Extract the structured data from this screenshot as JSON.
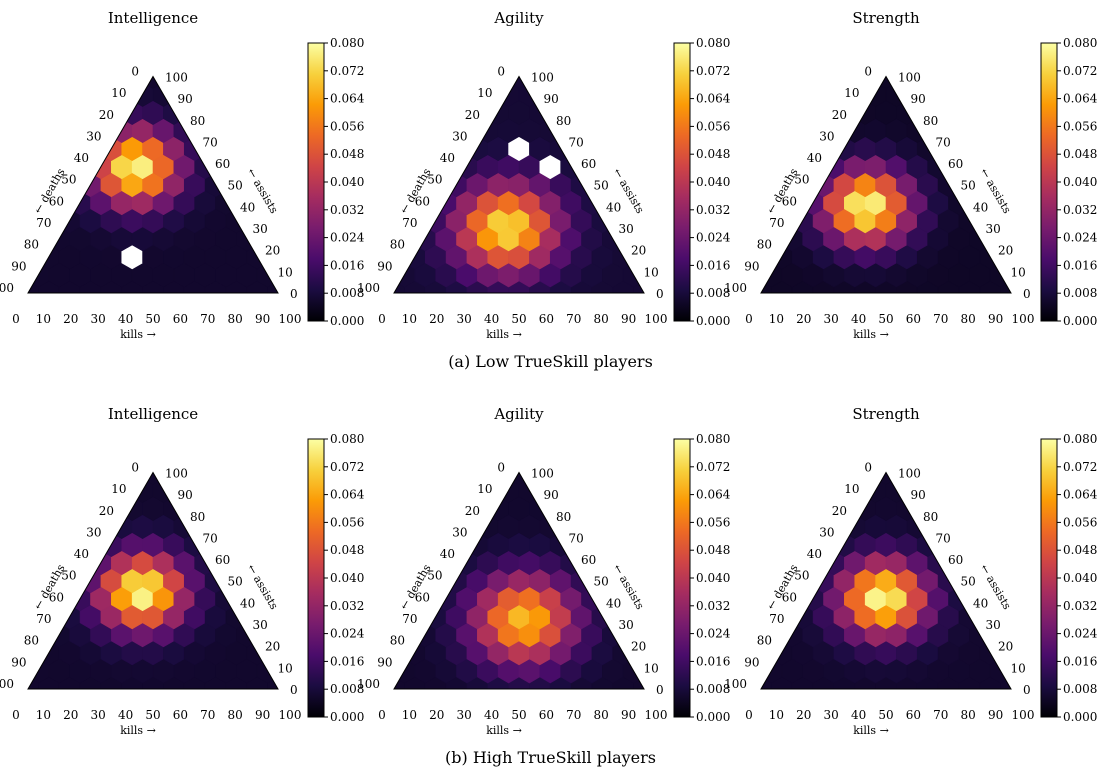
{
  "figure": {
    "captions": [
      "(a) Low TrueSkill players",
      "(b) High TrueSkill players"
    ]
  },
  "colormap": {
    "name": "inferno",
    "stops": [
      "#000004",
      "#1b0c41",
      "#4a0c6b",
      "#781c6d",
      "#a52c60",
      "#cf4446",
      "#ed6925",
      "#fb9b06",
      "#f7d13d",
      "#fcffa4"
    ]
  },
  "axis_labels": {
    "kills": "kills →",
    "deaths": "← deaths",
    "assists": "← assists"
  },
  "chart_data": [
    {
      "type": "heatmap",
      "subtype": "ternary-hexbin",
      "group": "Low TrueSkill players",
      "title": "Intelligence",
      "center": [
        33,
        58
      ],
      "peak": 0.079,
      "spread": 12,
      "floor": 0.006,
      "missing_cells": [
        [
          12,
          1
        ],
        [
          5,
          2
        ]
      ],
      "colorbar": {
        "min": 0.0,
        "max": 0.08,
        "ticks": [
          "0.000",
          "0.008",
          "0.016",
          "0.024",
          "0.032",
          "0.040",
          "0.048",
          "0.056",
          "0.064",
          "0.072",
          "0.080"
        ]
      },
      "kill_ticks": [
        "0",
        "10",
        "20",
        "30",
        "40",
        "50",
        "60",
        "70",
        "80",
        "90",
        "100"
      ],
      "death_ticks": [
        "0",
        "10",
        "20",
        "30",
        "40",
        "50",
        "60",
        "70",
        "80",
        "90",
        "100"
      ],
      "assist_ticks": [
        "0",
        "10",
        "20",
        "30",
        "40",
        "50",
        "60",
        "70",
        "80",
        "90",
        "100"
      ]
    },
    {
      "type": "heatmap",
      "subtype": "ternary-hexbin",
      "group": "Low TrueSkill players",
      "title": "Agility",
      "center": [
        43,
        30
      ],
      "peak": 0.074,
      "spread": 14,
      "floor": 0.007,
      "missing_cells": [
        [
          6,
          8
        ],
        [
          7,
          7
        ]
      ],
      "colorbar": {
        "min": 0.0,
        "max": 0.08,
        "ticks": [
          "0.000",
          "0.008",
          "0.016",
          "0.024",
          "0.032",
          "0.040",
          "0.048",
          "0.056",
          "0.064",
          "0.072",
          "0.080"
        ]
      },
      "kill_ticks": [
        "0",
        "10",
        "20",
        "30",
        "40",
        "50",
        "60",
        "70",
        "80",
        "90",
        "100"
      ],
      "death_ticks": [
        "0",
        "10",
        "20",
        "30",
        "40",
        "50",
        "60",
        "70",
        "80",
        "90",
        "100"
      ],
      "assist_ticks": [
        "0",
        "10",
        "20",
        "30",
        "40",
        "50",
        "60",
        "70",
        "80",
        "90",
        "100"
      ]
    },
    {
      "type": "heatmap",
      "subtype": "ternary-hexbin",
      "group": "Low TrueSkill players",
      "title": "Strength",
      "center": [
        37,
        40
      ],
      "peak": 0.08,
      "spread": 12,
      "floor": 0.005,
      "missing_cells": [],
      "colorbar": {
        "min": 0.0,
        "max": 0.08,
        "ticks": [
          "0.000",
          "0.008",
          "0.016",
          "0.024",
          "0.032",
          "0.040",
          "0.048",
          "0.056",
          "0.064",
          "0.072",
          "0.080"
        ]
      },
      "kill_ticks": [
        "0",
        "10",
        "20",
        "30",
        "40",
        "50",
        "60",
        "70",
        "80",
        "90",
        "100"
      ],
      "death_ticks": [
        "0",
        "10",
        "20",
        "30",
        "40",
        "50",
        "60",
        "70",
        "80",
        "90",
        "100"
      ],
      "assist_ticks": [
        "0",
        "10",
        "20",
        "30",
        "40",
        "50",
        "60",
        "70",
        "80",
        "90",
        "100"
      ]
    },
    {
      "type": "heatmap",
      "subtype": "ternary-hexbin",
      "group": "High TrueSkill players",
      "title": "Intelligence",
      "center": [
        42,
        45
      ],
      "peak": 0.08,
      "spread": 12,
      "floor": 0.006,
      "missing_cells": [],
      "colorbar": {
        "min": 0.0,
        "max": 0.08,
        "ticks": [
          "0.000",
          "0.008",
          "0.016",
          "0.024",
          "0.032",
          "0.040",
          "0.048",
          "0.056",
          "0.064",
          "0.072",
          "0.080"
        ]
      },
      "kill_ticks": [
        "0",
        "10",
        "20",
        "30",
        "40",
        "50",
        "60",
        "70",
        "80",
        "90",
        "100"
      ],
      "death_ticks": [
        "0",
        "10",
        "20",
        "30",
        "40",
        "50",
        "60",
        "70",
        "80",
        "90",
        "100"
      ],
      "assist_ticks": [
        "0",
        "10",
        "20",
        "30",
        "40",
        "50",
        "60",
        "70",
        "80",
        "90",
        "100"
      ]
    },
    {
      "type": "heatmap",
      "subtype": "ternary-hexbin",
      "group": "High TrueSkill players",
      "title": "Agility",
      "center": [
        53,
        32
      ],
      "peak": 0.068,
      "spread": 14,
      "floor": 0.006,
      "missing_cells": [],
      "colorbar": {
        "min": 0.0,
        "max": 0.08,
        "ticks": [
          "0.000",
          "0.008",
          "0.016",
          "0.024",
          "0.032",
          "0.040",
          "0.048",
          "0.056",
          "0.064",
          "0.072",
          "0.080"
        ]
      },
      "kill_ticks": [
        "0",
        "10",
        "20",
        "30",
        "40",
        "50",
        "60",
        "70",
        "80",
        "90",
        "100"
      ],
      "death_ticks": [
        "0",
        "10",
        "20",
        "30",
        "40",
        "50",
        "60",
        "70",
        "80",
        "90",
        "100"
      ],
      "assist_ticks": [
        "0",
        "10",
        "20",
        "30",
        "40",
        "50",
        "60",
        "70",
        "80",
        "90",
        "100"
      ]
    },
    {
      "type": "heatmap",
      "subtype": "ternary-hexbin",
      "group": "High TrueSkill players",
      "title": "Strength",
      "center": [
        48,
        42
      ],
      "peak": 0.08,
      "spread": 12,
      "floor": 0.006,
      "missing_cells": [],
      "colorbar": {
        "min": 0.0,
        "max": 0.08,
        "ticks": [
          "0.000",
          "0.008",
          "0.016",
          "0.024",
          "0.032",
          "0.040",
          "0.048",
          "0.056",
          "0.064",
          "0.072",
          "0.080"
        ]
      },
      "kill_ticks": [
        "0",
        "10",
        "20",
        "30",
        "40",
        "50",
        "60",
        "70",
        "80",
        "90",
        "100"
      ],
      "death_ticks": [
        "0",
        "10",
        "20",
        "30",
        "40",
        "50",
        "60",
        "70",
        "80",
        "90",
        "100"
      ],
      "assist_ticks": [
        "0",
        "10",
        "20",
        "30",
        "40",
        "50",
        "60",
        "70",
        "80",
        "90",
        "100"
      ]
    }
  ]
}
